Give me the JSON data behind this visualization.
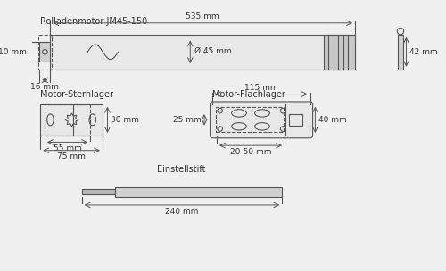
{
  "bg_color": "#f0f0f0",
  "line_color": "#555555",
  "text_color": "#333333",
  "title": "Rolladenmotor JM45-150",
  "dim_535": "535 mm",
  "dim_10": "10 mm",
  "dim_16": "16 mm",
  "dim_45": "Ø 45 mm",
  "dim_42": "42 mm",
  "label_stern": "Motor-Sternlager",
  "label_flach": "Motor-Flachlager",
  "dim_30": "30 mm",
  "dim_55": "55 mm",
  "dim_75": "75 mm",
  "dim_115": "115 mm",
  "dim_25": "25 mm",
  "dim_40": "40 mm",
  "dim_2050": "20-50 mm",
  "label_einstell": "Einstellstift",
  "dim_240": "240 mm"
}
